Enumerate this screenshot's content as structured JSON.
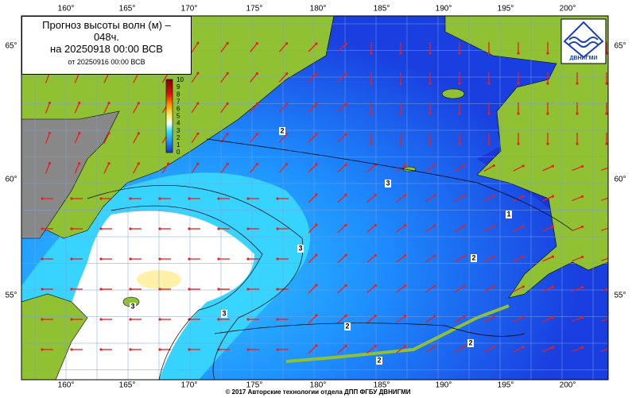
{
  "header": {
    "title": "Прогноз высоты волн (м) – 048ч.",
    "valid": "на 20250918 00:00 ВСВ",
    "issued": "от 20250916 00:00 ВСВ"
  },
  "colorbar": {
    "labels": [
      "10",
      "9",
      "8",
      "7",
      "6",
      "5",
      "4",
      "3",
      "2",
      "1",
      "0"
    ]
  },
  "axes": {
    "lon_labels": [
      "160°",
      "165°",
      "170°",
      "175°",
      "180°",
      "185°",
      "190°",
      "195°",
      "200°"
    ],
    "lat_labels": [
      "65°",
      "60°",
      "55°"
    ]
  },
  "contour_labels": [
    "2",
    "3",
    "1",
    "3",
    "2",
    "3",
    "3",
    "2",
    "2",
    "2"
  ],
  "logo": {
    "text": "ДВНИГМИ"
  },
  "footer": "© 2017 Авторские технологии отдела ДПП ФГБУ ДВНИГМИ"
}
